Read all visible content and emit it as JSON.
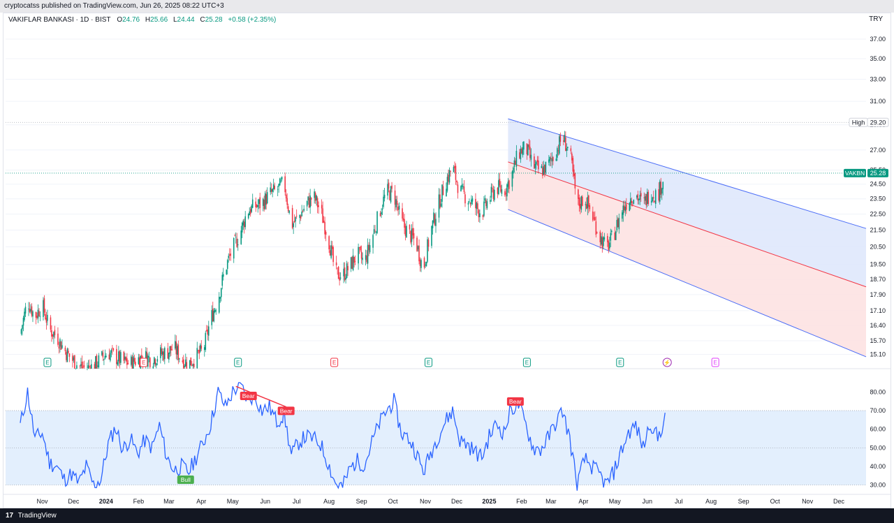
{
  "publisher_line": "cryptocatss published on TradingView.com, Jun 26, 2025 08:22 UTC+3",
  "header": {
    "symbol": "VAKIFLAR BANKASI · 1D · BIST",
    "o_key": "O",
    "o": "24.76",
    "h_key": "H",
    "h": "25.66",
    "l_key": "L",
    "l": "24.44",
    "c_key": "C",
    "c": "25.28",
    "change": "+0.58 (+2.35%)"
  },
  "currency": "TRY",
  "footer": {
    "logo": "17",
    "brand": "TradingView"
  },
  "colors": {
    "up": "#089981",
    "down": "#f23645",
    "rsi_line": "#2962ff",
    "rsi_band": "#e3effd",
    "channel_upper_fill": "#dde6fb",
    "channel_lower_fill": "#fde2e2",
    "channel_line": "#4a6cf7",
    "channel_mid": "#f23645",
    "last_price_bg": "#089981"
  },
  "chart_data": [
    {
      "type": "candlestick",
      "title": "VAKIFLAR BANKASI · 1D · BIST",
      "y_ticks": [
        "37.00",
        "35.00",
        "33.00",
        "31.00",
        "29.00",
        "27.00",
        "25.50",
        "24.50",
        "23.50",
        "22.50",
        "21.50",
        "20.50",
        "19.50",
        "18.70",
        "17.90",
        "17.10",
        "16.40",
        "15.70",
        "15.10"
      ],
      "ylim": [
        14.5,
        38.5
      ],
      "scale": "log",
      "x_labels": [
        "Nov",
        "Dec",
        "2024",
        "Feb",
        "Mar",
        "Apr",
        "May",
        "Jun",
        "Jul",
        "Aug",
        "Sep",
        "Oct",
        "Nov",
        "Dec",
        "2025",
        "Feb",
        "Mar",
        "Apr",
        "May",
        "Jun",
        "Jul",
        "Aug",
        "Sep",
        "Oct",
        "Nov",
        "Dec"
      ],
      "high_label": "High",
      "high_value": "29.20",
      "last_price": {
        "ticker": "VAKBN",
        "value": "25.28"
      },
      "price_path": [
        [
          "2023-10-15",
          16.0
        ],
        [
          "2023-10-22",
          17.6
        ],
        [
          "2023-10-29",
          16.8
        ],
        [
          "2023-11-05",
          17.4
        ],
        [
          "2023-11-12",
          16.2
        ],
        [
          "2023-11-19",
          15.9
        ],
        [
          "2023-11-26",
          15.3
        ],
        [
          "2023-12-03",
          14.9
        ],
        [
          "2023-12-10",
          14.6
        ],
        [
          "2023-12-17",
          14.5
        ],
        [
          "2023-12-24",
          14.6
        ],
        [
          "2023-12-31",
          14.9
        ],
        [
          "2024-01-07",
          15.2
        ],
        [
          "2024-01-14",
          15.0
        ],
        [
          "2024-01-21",
          14.8
        ],
        [
          "2024-01-28",
          14.7
        ],
        [
          "2024-02-04",
          14.9
        ],
        [
          "2024-02-11",
          15.0
        ],
        [
          "2024-02-18",
          14.9
        ],
        [
          "2024-02-25",
          15.1
        ],
        [
          "2024-03-03",
          15.2
        ],
        [
          "2024-03-10",
          15.4
        ],
        [
          "2024-03-17",
          14.9
        ],
        [
          "2024-03-24",
          14.7
        ],
        [
          "2024-03-31",
          15.0
        ],
        [
          "2024-04-07",
          15.3
        ],
        [
          "2024-04-14",
          16.7
        ],
        [
          "2024-04-21",
          17.7
        ],
        [
          "2024-04-28",
          19.3
        ],
        [
          "2024-05-05",
          20.4
        ],
        [
          "2024-05-12",
          21.3
        ],
        [
          "2024-05-19",
          22.7
        ],
        [
          "2024-05-26",
          23.0
        ],
        [
          "2024-06-02",
          23.2
        ],
        [
          "2024-06-09",
          23.8
        ],
        [
          "2024-06-16",
          24.1
        ],
        [
          "2024-06-23",
          24.6
        ],
        [
          "2024-06-30",
          21.8
        ],
        [
          "2024-07-07",
          22.3
        ],
        [
          "2024-07-14",
          23.1
        ],
        [
          "2024-07-21",
          23.7
        ],
        [
          "2024-07-28",
          22.7
        ],
        [
          "2024-08-04",
          21.1
        ],
        [
          "2024-08-11",
          19.0
        ],
        [
          "2024-08-18",
          18.9
        ],
        [
          "2024-08-25",
          19.4
        ],
        [
          "2024-09-01",
          20.1
        ],
        [
          "2024-09-08",
          19.6
        ],
        [
          "2024-09-15",
          21.0
        ],
        [
          "2024-09-22",
          22.6
        ],
        [
          "2024-09-29",
          24.0
        ],
        [
          "2024-10-06",
          23.8
        ],
        [
          "2024-10-13",
          22.0
        ],
        [
          "2024-10-20",
          21.3
        ],
        [
          "2024-10-27",
          20.8
        ],
        [
          "2024-11-03",
          19.2
        ],
        [
          "2024-11-10",
          21.4
        ],
        [
          "2024-11-17",
          23.0
        ],
        [
          "2024-11-24",
          24.6
        ],
        [
          "2024-12-01",
          25.7
        ],
        [
          "2024-12-08",
          24.0
        ],
        [
          "2024-12-15",
          23.6
        ],
        [
          "2024-12-22",
          23.0
        ],
        [
          "2024-12-29",
          22.6
        ],
        [
          "2025-01-05",
          23.5
        ],
        [
          "2025-01-12",
          24.3
        ],
        [
          "2025-01-19",
          24.0
        ],
        [
          "2025-01-26",
          25.0
        ],
        [
          "2025-02-02",
          26.8
        ],
        [
          "2025-02-09",
          27.2
        ],
        [
          "2025-02-16",
          25.8
        ],
        [
          "2025-02-23",
          25.4
        ],
        [
          "2025-03-02",
          25.8
        ],
        [
          "2025-03-09",
          26.8
        ],
        [
          "2025-03-16",
          28.0
        ],
        [
          "2025-03-23",
          26.8
        ],
        [
          "2025-03-30",
          23.0
        ],
        [
          "2025-04-06",
          23.6
        ],
        [
          "2025-04-13",
          22.5
        ],
        [
          "2025-04-20",
          21.2
        ],
        [
          "2025-04-27",
          20.4
        ],
        [
          "2025-05-04",
          21.2
        ],
        [
          "2025-05-11",
          22.6
        ],
        [
          "2025-05-18",
          23.5
        ],
        [
          "2025-05-25",
          23.8
        ],
        [
          "2025-06-01",
          23.1
        ],
        [
          "2025-06-08",
          24.0
        ],
        [
          "2025-06-15",
          23.7
        ],
        [
          "2025-06-22",
          25.28
        ]
      ],
      "channel": {
        "start": "2025-01-23",
        "end": "2025-12-31",
        "upper": [
          29.5,
          21.6
        ],
        "mid": [
          26.1,
          18.3
        ],
        "lower": [
          22.8,
          15.0
        ]
      },
      "event_markers": [
        {
          "label": "E",
          "date": "2023-11-10",
          "kind": "earnings"
        },
        {
          "label": "E",
          "date": "2024-02-10",
          "kind": "earnings-past"
        },
        {
          "label": "E",
          "date": "2024-05-10",
          "kind": "earnings"
        },
        {
          "label": "E",
          "date": "2024-08-10",
          "kind": "earnings-past"
        },
        {
          "label": "E",
          "date": "2024-11-08",
          "kind": "earnings"
        },
        {
          "label": "E",
          "date": "2025-02-10",
          "kind": "earnings"
        },
        {
          "label": "E",
          "date": "2025-05-10",
          "kind": "earnings"
        },
        {
          "label": "⚡",
          "date": "2025-06-24",
          "kind": "split"
        },
        {
          "label": "E",
          "date": "2025-08-09",
          "kind": "earnings-future"
        }
      ]
    },
    {
      "type": "line",
      "title": "RSI",
      "y_ticks": [
        "80.00",
        "70.00",
        "60.00",
        "50.00",
        "40.00",
        "30.00"
      ],
      "ylim": [
        25,
        88
      ],
      "band": [
        30,
        70
      ],
      "midline": 50,
      "series": [
        {
          "values": [
            [
              "2023-10-15",
              62
            ],
            [
              "2023-10-22",
              80
            ],
            [
              "2023-10-29",
              55
            ],
            [
              "2023-11-05",
              58
            ],
            [
              "2023-11-12",
              42
            ],
            [
              "2023-11-19",
              40
            ],
            [
              "2023-11-26",
              33
            ],
            [
              "2023-12-03",
              36
            ],
            [
              "2023-12-10",
              31
            ],
            [
              "2023-12-17",
              40
            ],
            [
              "2023-12-24",
              30
            ],
            [
              "2023-12-31",
              33
            ],
            [
              "2024-01-07",
              52
            ],
            [
              "2024-01-14",
              61
            ],
            [
              "2024-01-21",
              49
            ],
            [
              "2024-01-28",
              55
            ],
            [
              "2024-02-04",
              47
            ],
            [
              "2024-02-11",
              54
            ],
            [
              "2024-02-18",
              50
            ],
            [
              "2024-02-25",
              62
            ],
            [
              "2024-03-03",
              45
            ],
            [
              "2024-03-10",
              38
            ],
            [
              "2024-03-17",
              40
            ],
            [
              "2024-03-24",
              37
            ],
            [
              "2024-03-31",
              45
            ],
            [
              "2024-04-07",
              53
            ],
            [
              "2024-04-14",
              63
            ],
            [
              "2024-04-21",
              80
            ],
            [
              "2024-04-28",
              72
            ],
            [
              "2024-05-05",
              80
            ],
            [
              "2024-05-12",
              84
            ],
            [
              "2024-05-19",
              76
            ],
            [
              "2024-05-26",
              78
            ],
            [
              "2024-06-02",
              70
            ],
            [
              "2024-06-09",
              72
            ],
            [
              "2024-06-16",
              64
            ],
            [
              "2024-06-23",
              68
            ],
            [
              "2024-06-30",
              46
            ],
            [
              "2024-07-07",
              53
            ],
            [
              "2024-07-14",
              56
            ],
            [
              "2024-07-21",
              55
            ],
            [
              "2024-07-28",
              52
            ],
            [
              "2024-08-04",
              42
            ],
            [
              "2024-08-11",
              31
            ],
            [
              "2024-08-18",
              29
            ],
            [
              "2024-08-25",
              39
            ],
            [
              "2024-09-01",
              43
            ],
            [
              "2024-09-08",
              41
            ],
            [
              "2024-09-15",
              53
            ],
            [
              "2024-09-22",
              63
            ],
            [
              "2024-09-29",
              70
            ],
            [
              "2024-10-06",
              75
            ],
            [
              "2024-10-13",
              58
            ],
            [
              "2024-10-20",
              55
            ],
            [
              "2024-10-27",
              48
            ],
            [
              "2024-11-03",
              37
            ],
            [
              "2024-11-10",
              47
            ],
            [
              "2024-11-17",
              56
            ],
            [
              "2024-11-24",
              64
            ],
            [
              "2024-12-01",
              70
            ],
            [
              "2024-12-08",
              54
            ],
            [
              "2024-12-15",
              52
            ],
            [
              "2024-12-22",
              48
            ],
            [
              "2024-12-29",
              45
            ],
            [
              "2025-01-05",
              56
            ],
            [
              "2025-01-12",
              63
            ],
            [
              "2025-01-19",
              58
            ],
            [
              "2025-01-26",
              71
            ],
            [
              "2025-02-02",
              73
            ],
            [
              "2025-02-09",
              62
            ],
            [
              "2025-02-16",
              50
            ],
            [
              "2025-02-23",
              49
            ],
            [
              "2025-03-02",
              55
            ],
            [
              "2025-03-09",
              63
            ],
            [
              "2025-03-16",
              70
            ],
            [
              "2025-03-23",
              55
            ],
            [
              "2025-03-30",
              30
            ],
            [
              "2025-04-06",
              44
            ],
            [
              "2025-04-13",
              40
            ],
            [
              "2025-04-20",
              36
            ],
            [
              "2025-04-27",
              30
            ],
            [
              "2025-05-04",
              37
            ],
            [
              "2025-05-11",
              48
            ],
            [
              "2025-05-18",
              58
            ],
            [
              "2025-05-25",
              62
            ],
            [
              "2025-06-01",
              50
            ],
            [
              "2025-06-08",
              64
            ],
            [
              "2025-06-15",
              55
            ],
            [
              "2025-06-22",
              66
            ]
          ]
        }
      ],
      "signals": [
        {
          "label": "Bear",
          "date": "2024-05-20",
          "kind": "bear"
        },
        {
          "label": "Bear",
          "date": "2024-06-25",
          "kind": "bear"
        },
        {
          "label": "Bear",
          "date": "2025-01-30",
          "kind": "bear"
        },
        {
          "label": "Bull",
          "date": "2024-03-21",
          "kind": "bull"
        }
      ]
    }
  ]
}
